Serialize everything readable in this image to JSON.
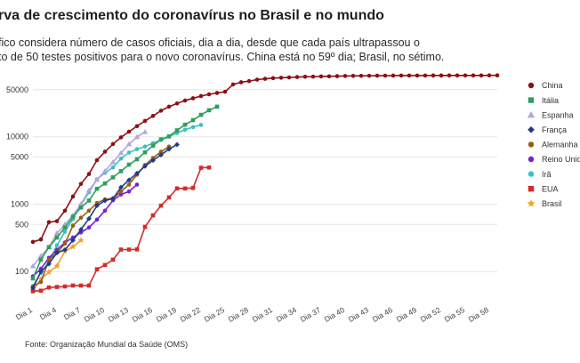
{
  "header": {
    "title": "rva de crescimento do coronavírus no Brasil e no mundo",
    "subtitle_line1": "fico considera número de casos oficiais, dia a dia, desde que cada país ultrapassou o",
    "subtitle_line2": "to de 50 testes positivos para o novo coronavírus. China está no 59º dia; Brasil, no sétimo."
  },
  "footer": {
    "source": "Fonte: Organização Mundial da Saúde (OMS)"
  },
  "chart_data": {
    "type": "line",
    "y_scale": "log",
    "ylim": [
      50,
      100000
    ],
    "xlim": [
      1,
      59
    ],
    "y_ticks": [
      100,
      500,
      1000,
      5000,
      10000,
      50000
    ],
    "y_tick_labels": [
      "100",
      "500",
      "1000",
      "5000",
      "10000",
      "50000"
    ],
    "x_ticks": [
      1,
      4,
      7,
      10,
      13,
      16,
      19,
      22,
      25,
      28,
      31,
      34,
      37,
      40,
      43,
      46,
      49,
      52,
      55,
      58
    ],
    "x_tick_labels": [
      "Dia 1",
      "Dia 4",
      "Dia 7",
      "Dia 10",
      "Dia 13",
      "Dia 16",
      "Dia 19",
      "Dia 22",
      "Dia 25",
      "Dia 28",
      "Dia 31",
      "Dia 34",
      "Dia 37",
      "Dia 40",
      "Dia 43",
      "Dia 46",
      "Dia 49",
      "Dia 52",
      "Dia 55",
      "Dia 58"
    ],
    "grid": true,
    "legend_position": "right",
    "series": [
      {
        "name": "China",
        "color": "#8b0f14",
        "marker": "circle",
        "values": [
          275,
          300,
          540,
          560,
          800,
          1300,
          2000,
          2800,
          4500,
          6000,
          7800,
          9800,
          11900,
          14400,
          17200,
          20400,
          24400,
          28000,
          31200,
          34500,
          37300,
          40200,
          42700,
          44700,
          46600,
          59800,
          64400,
          67100,
          70500,
          72500,
          74200,
          75200,
          76000,
          77000,
          77700,
          78100,
          78600,
          78900,
          79400,
          79900,
          80100,
          80300,
          80500,
          80700,
          80800,
          80900,
          81000,
          81000,
          81100,
          81100,
          81200,
          81200,
          81300,
          81300,
          81400,
          81400,
          81400,
          81500,
          81500
        ]
      },
      {
        "name": "Itália",
        "color": "#2e9e5b",
        "marker": "square",
        "values": [
          79,
          150,
          230,
          320,
          450,
          650,
          890,
          1130,
          1690,
          2030,
          2500,
          3090,
          3860,
          4640,
          5880,
          7380,
          9170,
          10150,
          12460,
          15110,
          17660,
          21160,
          24750,
          27980
        ]
      },
      {
        "name": "Espanha",
        "color": "#b3a6de",
        "marker": "triangle",
        "values": [
          120,
          170,
          230,
          370,
          500,
          680,
          1000,
          1600,
          2300,
          3100,
          4200,
          5750,
          7750,
          9900,
          11800
        ]
      },
      {
        "name": "França",
        "color": "#1f3c88",
        "marker": "diamond",
        "values": [
          57,
          100,
          130,
          190,
          210,
          290,
          420,
          610,
          950,
          1130,
          1210,
          1780,
          2280,
          2870,
          3660,
          4470,
          5380,
          6570,
          7650
        ]
      },
      {
        "name": "Alemanha",
        "color": "#9b5c12",
        "marker": "circle",
        "values": [
          60,
          70,
          150,
          190,
          260,
          480,
          630,
          800,
          1040,
          1180,
          1220,
          1540,
          1950,
          2740,
          3800,
          4850,
          6000,
          7150
        ]
      },
      {
        "name": "Reino Unido",
        "color": "#7a1fd6",
        "marker": "circle",
        "values": [
          85,
          110,
          160,
          210,
          270,
          320,
          380,
          450,
          590,
          800,
          1140,
          1390,
          1540,
          1950
        ]
      },
      {
        "name": "Irã",
        "color": "#3fbfbf",
        "marker": "circle",
        "values": [
          61,
          95,
          140,
          245,
          390,
          600,
          980,
          1500,
          2340,
          2920,
          3510,
          4750,
          5820,
          6560,
          7160,
          8040,
          9000,
          10070,
          11360,
          12730,
          13930,
          14990
        ]
      },
      {
        "name": "EUA",
        "color": "#d42a2a",
        "marker": "square",
        "values": [
          51,
          52,
          58,
          59,
          60,
          62,
          62,
          62,
          108,
          125,
          150,
          212,
          212,
          213,
          460,
          680,
          950,
          1260,
          1710,
          1710,
          1740,
          3470,
          3500
        ]
      },
      {
        "name": "Brasil",
        "color": "#f0a030",
        "marker": "star",
        "values": [
          52,
          77,
          98,
          121,
          200,
          234,
          291
        ]
      }
    ]
  }
}
